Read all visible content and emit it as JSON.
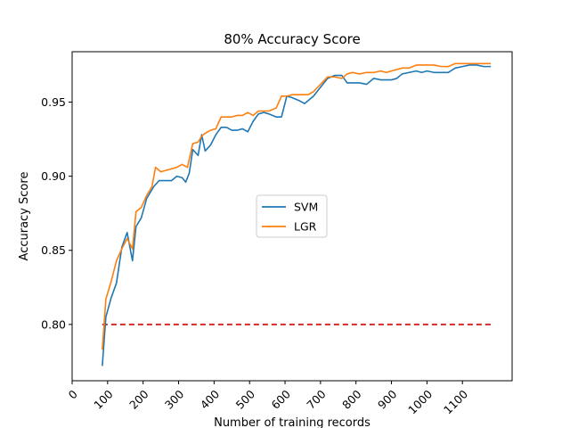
{
  "chart_data": {
    "type": "line",
    "title": "80% Accuracy Score",
    "xlabel": "Number of training records",
    "ylabel": "Accuracy Score",
    "xlim": [
      0,
      1240
    ],
    "ylim": [
      0.762,
      0.984
    ],
    "x_ticks": [
      0,
      100,
      200,
      300,
      400,
      500,
      600,
      700,
      800,
      900,
      1000,
      1100
    ],
    "x_tick_labels": [
      "0",
      "100",
      "200",
      "300",
      "400",
      "500",
      "600",
      "700",
      "800",
      "900",
      "1000",
      "1100"
    ],
    "y_ticks": [
      0.8,
      0.85,
      0.9,
      0.95
    ],
    "y_tick_labels": [
      "0.80",
      "0.85",
      "0.90",
      "0.95"
    ],
    "legend_position": "center",
    "grid": false,
    "series": [
      {
        "name": "SVM",
        "color": "#1f77b4",
        "x": [
          85,
          95,
          110,
          125,
          140,
          155,
          170,
          180,
          195,
          210,
          230,
          245,
          260,
          280,
          295,
          310,
          320,
          330,
          340,
          355,
          365,
          375,
          390,
          405,
          420,
          435,
          450,
          465,
          480,
          495,
          510,
          525,
          540,
          555,
          565,
          575,
          590,
          605,
          620,
          640,
          655,
          665,
          680,
          700,
          720,
          740,
          760,
          775,
          790,
          810,
          830,
          850,
          870,
          885,
          900,
          915,
          930,
          950,
          970,
          985,
          1000,
          1020,
          1040,
          1060,
          1080,
          1100,
          1120,
          1140,
          1160,
          1180
        ],
        "y": [
          0.772,
          0.805,
          0.818,
          0.828,
          0.852,
          0.862,
          0.843,
          0.866,
          0.872,
          0.885,
          0.893,
          0.897,
          0.897,
          0.897,
          0.9,
          0.899,
          0.896,
          0.902,
          0.918,
          0.914,
          0.928,
          0.917,
          0.921,
          0.928,
          0.933,
          0.933,
          0.931,
          0.931,
          0.932,
          0.93,
          0.937,
          0.942,
          0.943,
          0.942,
          0.941,
          0.94,
          0.94,
          0.954,
          0.953,
          0.951,
          0.949,
          0.951,
          0.954,
          0.96,
          0.966,
          0.968,
          0.968,
          0.963,
          0.963,
          0.963,
          0.962,
          0.966,
          0.965,
          0.965,
          0.965,
          0.966,
          0.969,
          0.97,
          0.971,
          0.97,
          0.971,
          0.97,
          0.97,
          0.97,
          0.973,
          0.974,
          0.975,
          0.975,
          0.974,
          0.974
        ]
      },
      {
        "name": "LGR",
        "color": "#ff7f0e",
        "x": [
          85,
          95,
          110,
          125,
          140,
          155,
          170,
          180,
          195,
          210,
          225,
          235,
          250,
          265,
          280,
          295,
          310,
          325,
          340,
          355,
          365,
          375,
          390,
          405,
          420,
          435,
          450,
          465,
          480,
          495,
          510,
          525,
          540,
          555,
          565,
          575,
          590,
          605,
          620,
          640,
          655,
          665,
          680,
          700,
          720,
          740,
          760,
          775,
          790,
          810,
          830,
          850,
          870,
          885,
          900,
          915,
          930,
          950,
          970,
          985,
          1000,
          1020,
          1040,
          1060,
          1080,
          1100,
          1120,
          1140,
          1160,
          1180
        ],
        "y": [
          0.783,
          0.817,
          0.829,
          0.843,
          0.851,
          0.858,
          0.851,
          0.876,
          0.879,
          0.887,
          0.893,
          0.906,
          0.903,
          0.904,
          0.905,
          0.906,
          0.908,
          0.906,
          0.922,
          0.923,
          0.927,
          0.929,
          0.931,
          0.932,
          0.94,
          0.94,
          0.94,
          0.941,
          0.941,
          0.943,
          0.941,
          0.944,
          0.944,
          0.944,
          0.945,
          0.946,
          0.954,
          0.954,
          0.955,
          0.955,
          0.955,
          0.955,
          0.957,
          0.962,
          0.967,
          0.967,
          0.966,
          0.969,
          0.97,
          0.969,
          0.97,
          0.97,
          0.971,
          0.97,
          0.971,
          0.972,
          0.973,
          0.973,
          0.975,
          0.975,
          0.975,
          0.975,
          0.974,
          0.974,
          0.976,
          0.976,
          0.976,
          0.976,
          0.976,
          0.976
        ]
      }
    ],
    "reference_line": {
      "y": 0.8,
      "x_range": [
        85,
        1180
      ],
      "color": "#d62728",
      "style": "dashed"
    }
  }
}
